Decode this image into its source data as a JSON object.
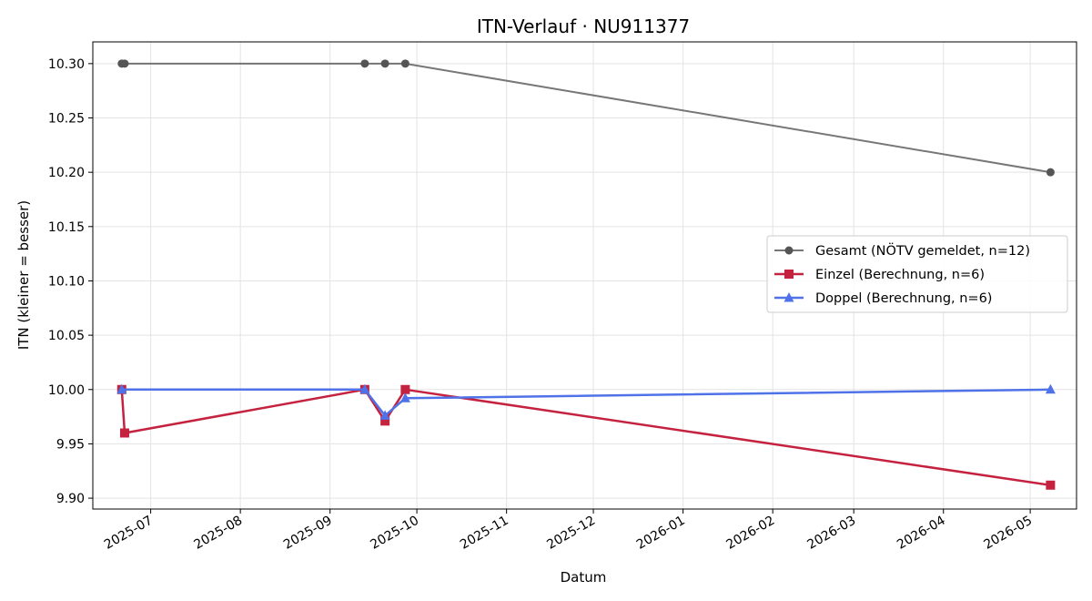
{
  "chart_data": {
    "type": "line",
    "title": "ITN-Verlauf · NU911377",
    "xlabel": "Datum",
    "ylabel": "ITN  (kleiner = besser)",
    "xlim": [
      "2025-06-11",
      "2026-05-17"
    ],
    "ylim": [
      9.89,
      10.32
    ],
    "x_ticks": [
      "2025-07",
      "2025-08",
      "2025-09",
      "2025-10",
      "2025-11",
      "2025-12",
      "2026-01",
      "2026-02",
      "2026-03",
      "2026-04",
      "2026-05"
    ],
    "y_ticks": [
      "9.90",
      "9.95",
      "10.00",
      "10.05",
      "10.10",
      "10.15",
      "10.20",
      "10.25",
      "10.30"
    ],
    "grid": true,
    "legend_position": "center-right",
    "series": [
      {
        "name": "Gesamt (NÖTV gemeldet, n=12)",
        "color": "#555555",
        "marker": "circle",
        "points": [
          {
            "x": "2025-06-21",
            "y": 10.3
          },
          {
            "x": "2025-06-22",
            "y": 10.3
          },
          {
            "x": "2025-09-13",
            "y": 10.3
          },
          {
            "x": "2025-09-20",
            "y": 10.3
          },
          {
            "x": "2025-09-27",
            "y": 10.3
          },
          {
            "x": "2026-05-08",
            "y": 10.2
          }
        ]
      },
      {
        "name": "Einzel (Berechnung, n=6)",
        "color": "#c4223f",
        "marker": "square",
        "points": [
          {
            "x": "2025-06-21",
            "y": 10.0
          },
          {
            "x": "2025-06-22",
            "y": 9.96
          },
          {
            "x": "2025-09-13",
            "y": 10.0
          },
          {
            "x": "2025-09-20",
            "y": 9.971
          },
          {
            "x": "2025-09-27",
            "y": 10.0
          },
          {
            "x": "2026-05-08",
            "y": 9.912
          }
        ]
      },
      {
        "name": "Doppel (Berechnung, n=6)",
        "color": "#4f72e8",
        "marker": "triangle",
        "points": [
          {
            "x": "2025-06-21",
            "y": 10.0
          },
          {
            "x": "2025-09-13",
            "y": 10.0
          },
          {
            "x": "2025-09-20",
            "y": 9.976
          },
          {
            "x": "2025-09-27",
            "y": 9.992
          },
          {
            "x": "2026-05-08",
            "y": 10.0
          }
        ]
      }
    ]
  }
}
